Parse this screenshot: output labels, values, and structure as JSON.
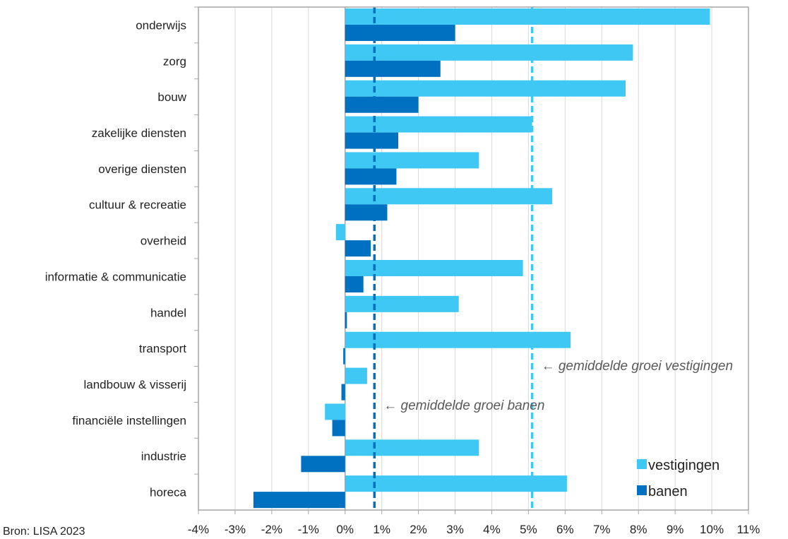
{
  "source_text": "Bron: LISA 2023",
  "chart_data": {
    "type": "bar",
    "orientation": "horizontal",
    "title": "",
    "xlabel": "",
    "ylabel": "",
    "xlim": [
      -4,
      11
    ],
    "x_ticks": [
      -4,
      -3,
      -2,
      -1,
      0,
      1,
      2,
      3,
      4,
      5,
      6,
      7,
      8,
      9,
      10,
      11
    ],
    "x_tick_labels": [
      "-4%",
      "-3%",
      "-2%",
      "-1%",
      "0%",
      "1%",
      "2%",
      "3%",
      "4%",
      "5%",
      "6%",
      "7%",
      "8%",
      "9%",
      "10%",
      "11%"
    ],
    "grid": "vertical",
    "categories": [
      "onderwijs",
      "zorg",
      "bouw",
      "zakelijke diensten",
      "overige diensten",
      "cultuur & recreatie",
      "overheid",
      "informatie & communicatie",
      "handel",
      "transport",
      "landbouw & visserij",
      "financiële instellingen",
      "industrie",
      "horeca"
    ],
    "series": [
      {
        "name": "vestigingen",
        "color": "#40c8f4",
        "values": [
          9.95,
          7.85,
          7.65,
          5.1,
          3.65,
          5.65,
          -0.25,
          4.85,
          3.1,
          6.15,
          0.6,
          -0.55,
          3.65,
          6.05
        ]
      },
      {
        "name": "banen",
        "color": "#0070c0",
        "values": [
          3.0,
          2.6,
          2.0,
          1.45,
          1.4,
          1.15,
          0.7,
          0.5,
          0.05,
          -0.05,
          -0.1,
          -0.35,
          -1.2,
          -2.5
        ]
      }
    ],
    "reference_lines": [
      {
        "label": "← gemiddelde groei vestigingen",
        "value": 5.1,
        "color": "#40c8f4"
      },
      {
        "label": "← gemiddelde groei banen",
        "value": 0.8,
        "color": "#0070c0"
      }
    ],
    "legend_position": "bottom-right"
  }
}
